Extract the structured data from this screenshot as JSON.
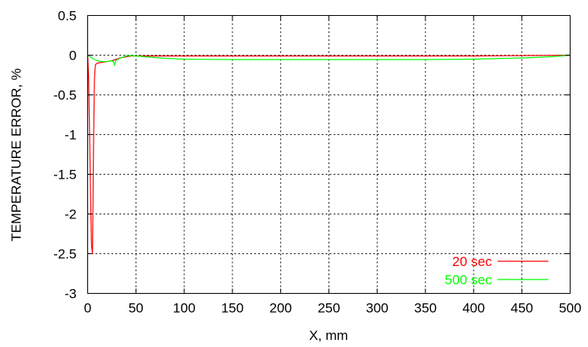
{
  "chart_data": {
    "type": "line",
    "xlabel": "X, mm",
    "ylabel": "TEMPERATURE ERROR, %",
    "xlim": [
      0,
      500
    ],
    "ylim": [
      -3,
      0.5
    ],
    "x_ticks": [
      "0",
      "50",
      "100",
      "150",
      "200",
      "250",
      "300",
      "350",
      "400",
      "450",
      "500"
    ],
    "y_ticks": [
      "0.5",
      "0",
      "-0.5",
      "-1",
      "-1.5",
      "-2",
      "-2.5",
      "-3"
    ],
    "grid": true,
    "legend_position": "bottom-right",
    "series": [
      {
        "name": "20 sec",
        "color": "#ff0000",
        "x": [
          0,
          1,
          2,
          3,
          4,
          5,
          6,
          7,
          8,
          10,
          15,
          20,
          25,
          30,
          35,
          40,
          45,
          50,
          100,
          200,
          300,
          400,
          500
        ],
        "y": [
          0,
          -0.3,
          -1.0,
          -1.8,
          -2.4,
          -2.5,
          -1.2,
          -0.3,
          -0.12,
          -0.1,
          -0.09,
          -0.08,
          -0.07,
          -0.05,
          -0.03,
          -0.02,
          -0.01,
          -0.01,
          -0.01,
          -0.01,
          -0.01,
          -0.01,
          0
        ]
      },
      {
        "name": "500 sec",
        "color": "#00ff00",
        "x": [
          0,
          5,
          10,
          15,
          20,
          25,
          27,
          28,
          29,
          30,
          35,
          40,
          45,
          50,
          60,
          80,
          100,
          150,
          200,
          250,
          300,
          350,
          400,
          450,
          480,
          500
        ],
        "y": [
          0,
          -0.04,
          -0.07,
          -0.08,
          -0.08,
          -0.07,
          -0.09,
          -0.13,
          -0.07,
          -0.06,
          -0.03,
          -0.01,
          -0.005,
          -0.01,
          -0.02,
          -0.04,
          -0.05,
          -0.055,
          -0.055,
          -0.055,
          -0.055,
          -0.055,
          -0.05,
          -0.035,
          -0.02,
          0
        ]
      }
    ]
  }
}
